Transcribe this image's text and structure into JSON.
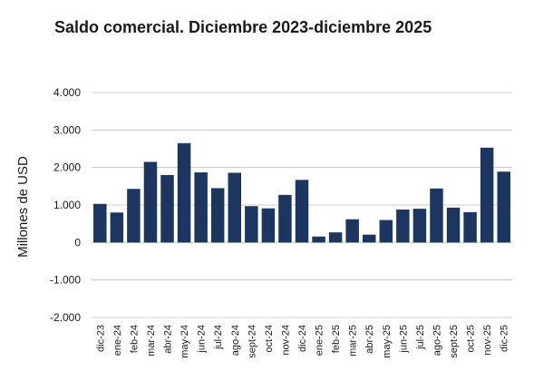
{
  "chart_data": {
    "type": "bar",
    "title": "Saldo comercial. Diciembre 2023-diciembre 2025",
    "xlabel": "",
    "ylabel": "Millones de USD",
    "ylim": [
      -2000,
      4000
    ],
    "yticks": [
      4000,
      3000,
      2000,
      1000,
      0,
      -1000,
      -2000
    ],
    "ytick_labels": [
      "4.000",
      "3.000",
      "2.000",
      "1.000",
      "0",
      "-1.000",
      "-2.000"
    ],
    "grid": true,
    "legend": "none",
    "bar_color": "#1c3660",
    "grid_color": "#bdbdbd",
    "categories": [
      "dic-23",
      "ene-24",
      "feb-24",
      "mar-24",
      "abr-24",
      "may-24",
      "jun-24",
      "jul-24",
      "ago-24",
      "sept-24",
      "oct-24",
      "nov-24",
      "dic-24",
      "ene-25",
      "feb-25",
      "mar-25",
      "abr-25",
      "may-25",
      "jun-25",
      "jul-25",
      "ago-25",
      "sept-25",
      "oct-25",
      "nov-25",
      "dic-25"
    ],
    "values": [
      1030,
      800,
      1430,
      2150,
      1800,
      2650,
      1870,
      1450,
      1860,
      970,
      910,
      1270,
      1670,
      160,
      270,
      620,
      210,
      600,
      880,
      900,
      1440,
      930,
      810,
      2530,
      1890
    ]
  }
}
